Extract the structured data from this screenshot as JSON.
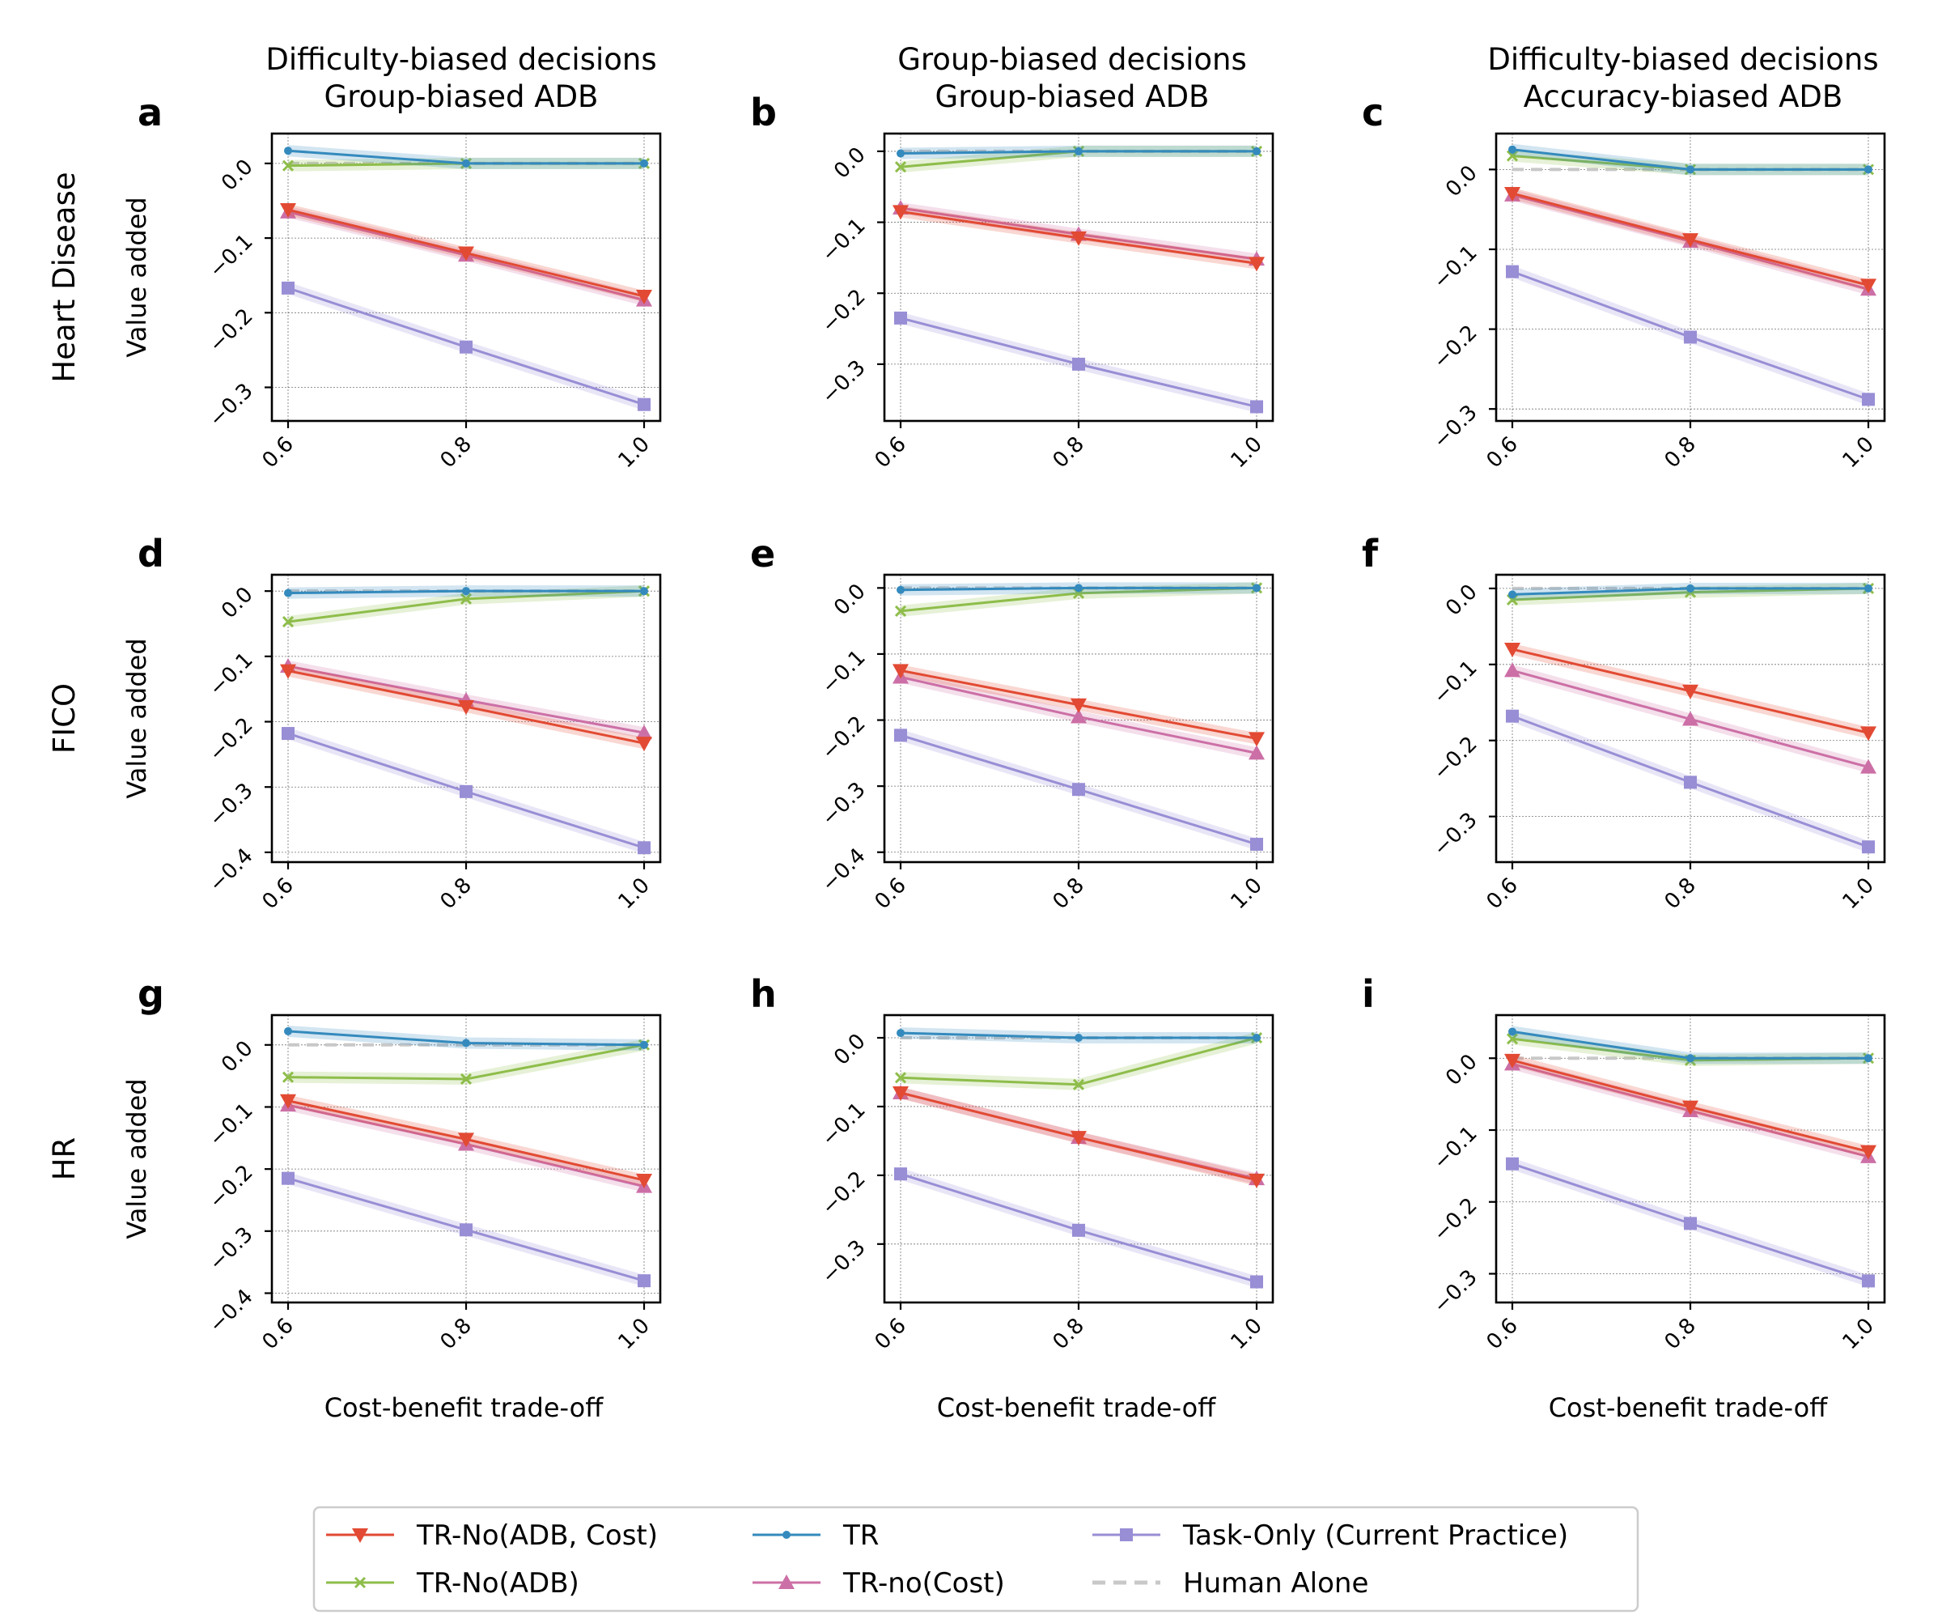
{
  "chart_data": {
    "type": "line",
    "x": [
      0.6,
      0.8,
      1.0
    ],
    "x_tick_labels": [
      "0.6",
      "0.8",
      "1.0"
    ],
    "xlabel": "Cost-benefit trade-off",
    "ylabel": "Value added",
    "grid": true,
    "legend_position": "bottom-center",
    "column_titles": [
      [
        "Difficulty-biased decisions",
        "Group-biased ADB"
      ],
      [
        "Group-biased decisions",
        "Group-biased ADB"
      ],
      [
        "Difficulty-biased decisions",
        "Accuracy-biased ADB"
      ]
    ],
    "row_labels": [
      "Heart Disease",
      "FICO",
      "HR"
    ],
    "series_styles": [
      {
        "key": "tr_no_adb_cost",
        "name": "TR-No(ADB, Cost)",
        "color": "#e24a33",
        "marker": "triangle-down",
        "dashed": false
      },
      {
        "key": "tr_no_adb",
        "name": "TR-No(ADB)",
        "color": "#8ebd4a",
        "marker": "x",
        "dashed": false
      },
      {
        "key": "tr",
        "name": "TR",
        "color": "#348abd",
        "marker": "dot",
        "dashed": false
      },
      {
        "key": "tr_no_cost",
        "name": "TR-no(Cost)",
        "color": "#cc6fa6",
        "marker": "triangle-up",
        "dashed": false
      },
      {
        "key": "task_only",
        "name": "Task-Only (Current Practice)",
        "color": "#988ed5",
        "marker": "square",
        "dashed": false
      },
      {
        "key": "human_alone",
        "name": "Human Alone",
        "color": "#c8c8c8",
        "marker": "none",
        "dashed": true
      }
    ],
    "panels": [
      {
        "letter": "a",
        "ylim": [
          -0.345,
          0.04
        ],
        "yticks": [
          0.0,
          -0.1,
          -0.2,
          -0.3
        ],
        "ytick_labels": [
          "0.0",
          "−0.1",
          "−0.2",
          "−0.3"
        ],
        "series": {
          "tr_no_adb_cost": [
            -0.062,
            -0.12,
            -0.178
          ],
          "tr_no_adb": [
            -0.003,
            0.0,
            0.0
          ],
          "tr": [
            0.017,
            0.0,
            0.0
          ],
          "tr_no_cost": [
            -0.065,
            -0.123,
            -0.183
          ],
          "task_only": [
            -0.167,
            -0.246,
            -0.323
          ],
          "human_alone": [
            0.0,
            0.0,
            0.0
          ]
        }
      },
      {
        "letter": "b",
        "ylim": [
          -0.38,
          0.025
        ],
        "yticks": [
          0.0,
          -0.1,
          -0.2,
          -0.3
        ],
        "ytick_labels": [
          "0.0",
          "−0.1",
          "−0.2",
          "−0.3"
        ],
        "series": {
          "tr_no_adb_cost": [
            -0.085,
            -0.122,
            -0.158
          ],
          "tr_no_adb": [
            -0.022,
            0.0,
            0.0
          ],
          "tr": [
            -0.003,
            0.0,
            0.0
          ],
          "tr_no_cost": [
            -0.08,
            -0.117,
            -0.152
          ],
          "task_only": [
            -0.235,
            -0.3,
            -0.36
          ],
          "human_alone": [
            0.0,
            0.0,
            0.0
          ]
        }
      },
      {
        "letter": "c",
        "ylim": [
          -0.315,
          0.045
        ],
        "yticks": [
          0.0,
          -0.1,
          -0.2,
          -0.3
        ],
        "ytick_labels": [
          "0.0",
          "−0.1",
          "−0.2",
          "−0.3"
        ],
        "series": {
          "tr_no_adb_cost": [
            -0.03,
            -0.088,
            -0.145
          ],
          "tr_no_adb": [
            0.017,
            0.0,
            0.0
          ],
          "tr": [
            0.025,
            0.0,
            0.0
          ],
          "tr_no_cost": [
            -0.032,
            -0.09,
            -0.15
          ],
          "task_only": [
            -0.128,
            -0.21,
            -0.288
          ],
          "human_alone": [
            0.0,
            0.0,
            0.0
          ]
        }
      },
      {
        "letter": "d",
        "ylim": [
          -0.415,
          0.025
        ],
        "yticks": [
          0.0,
          -0.1,
          -0.2,
          -0.3,
          -0.4
        ],
        "ytick_labels": [
          "0.0",
          "−0.1",
          "−0.2",
          "−0.3",
          "−0.4"
        ],
        "series": {
          "tr_no_adb_cost": [
            -0.122,
            -0.177,
            -0.233
          ],
          "tr_no_adb": [
            -0.047,
            -0.012,
            0.0
          ],
          "tr": [
            -0.003,
            0.0,
            0.0
          ],
          "tr_no_cost": [
            -0.115,
            -0.167,
            -0.217
          ],
          "task_only": [
            -0.218,
            -0.307,
            -0.393
          ],
          "human_alone": [
            0.0,
            0.0,
            0.0
          ]
        }
      },
      {
        "letter": "e",
        "ylim": [
          -0.415,
          0.02
        ],
        "yticks": [
          0.0,
          -0.1,
          -0.2,
          -0.3,
          -0.4
        ],
        "ytick_labels": [
          "0.0",
          "−0.1",
          "−0.2",
          "−0.3",
          "−0.4"
        ],
        "series": {
          "tr_no_adb_cost": [
            -0.125,
            -0.177,
            -0.228
          ],
          "tr_no_adb": [
            -0.035,
            -0.008,
            0.0
          ],
          "tr": [
            -0.003,
            0.0,
            0.0
          ],
          "tr_no_cost": [
            -0.135,
            -0.195,
            -0.25
          ],
          "task_only": [
            -0.223,
            -0.305,
            -0.388
          ],
          "human_alone": [
            0.0,
            0.0,
            0.0
          ]
        }
      },
      {
        "letter": "f",
        "ylim": [
          -0.36,
          0.018
        ],
        "yticks": [
          0.0,
          -0.1,
          -0.2,
          -0.3
        ],
        "ytick_labels": [
          "0.0",
          "−0.1",
          "−0.2",
          "−0.3"
        ],
        "series": {
          "tr_no_adb_cost": [
            -0.08,
            -0.135,
            -0.19
          ],
          "tr_no_adb": [
            -0.015,
            -0.005,
            0.0
          ],
          "tr": [
            -0.008,
            0.0,
            0.0
          ],
          "tr_no_cost": [
            -0.108,
            -0.172,
            -0.235
          ],
          "task_only": [
            -0.168,
            -0.255,
            -0.34
          ],
          "human_alone": [
            0.0,
            0.0,
            0.0
          ]
        }
      },
      {
        "letter": "g",
        "ylim": [
          -0.415,
          0.048
        ],
        "yticks": [
          0.0,
          -0.1,
          -0.2,
          -0.3,
          -0.4
        ],
        "ytick_labels": [
          "0.0",
          "−0.1",
          "−0.2",
          "−0.3",
          "−0.4"
        ],
        "series": {
          "tr_no_adb_cost": [
            -0.09,
            -0.152,
            -0.218
          ],
          "tr_no_adb": [
            -0.052,
            -0.055,
            0.0
          ],
          "tr": [
            0.022,
            0.003,
            0.0
          ],
          "tr_no_cost": [
            -0.097,
            -0.16,
            -0.228
          ],
          "task_only": [
            -0.215,
            -0.298,
            -0.38
          ],
          "human_alone": [
            0.0,
            0.0,
            0.0
          ]
        }
      },
      {
        "letter": "h",
        "ylim": [
          -0.385,
          0.033
        ],
        "yticks": [
          0.0,
          -0.1,
          -0.2,
          -0.3
        ],
        "ytick_labels": [
          "0.0",
          "−0.1",
          "−0.2",
          "−0.3"
        ],
        "series": {
          "tr_no_adb_cost": [
            -0.08,
            -0.145,
            -0.207
          ],
          "tr_no_adb": [
            -0.058,
            -0.068,
            0.0
          ],
          "tr": [
            0.007,
            0.0,
            0.0
          ],
          "tr_no_cost": [
            -0.08,
            -0.145,
            -0.205
          ],
          "task_only": [
            -0.198,
            -0.28,
            -0.355
          ],
          "human_alone": [
            0.0,
            0.0,
            0.0
          ]
        }
      },
      {
        "letter": "i",
        "ylim": [
          -0.34,
          0.06
        ],
        "yticks": [
          0.0,
          -0.1,
          -0.2,
          -0.3
        ],
        "ytick_labels": [
          "0.0",
          "−0.1",
          "−0.2",
          "−0.3"
        ],
        "series": {
          "tr_no_adb_cost": [
            -0.003,
            -0.068,
            -0.13
          ],
          "tr_no_adb": [
            0.027,
            -0.003,
            0.0
          ],
          "tr": [
            0.037,
            0.0,
            0.0
          ],
          "tr_no_cost": [
            -0.008,
            -0.073,
            -0.137
          ],
          "task_only": [
            -0.147,
            -0.23,
            -0.31
          ],
          "human_alone": [
            0.0,
            0.0,
            0.0
          ]
        }
      }
    ]
  }
}
